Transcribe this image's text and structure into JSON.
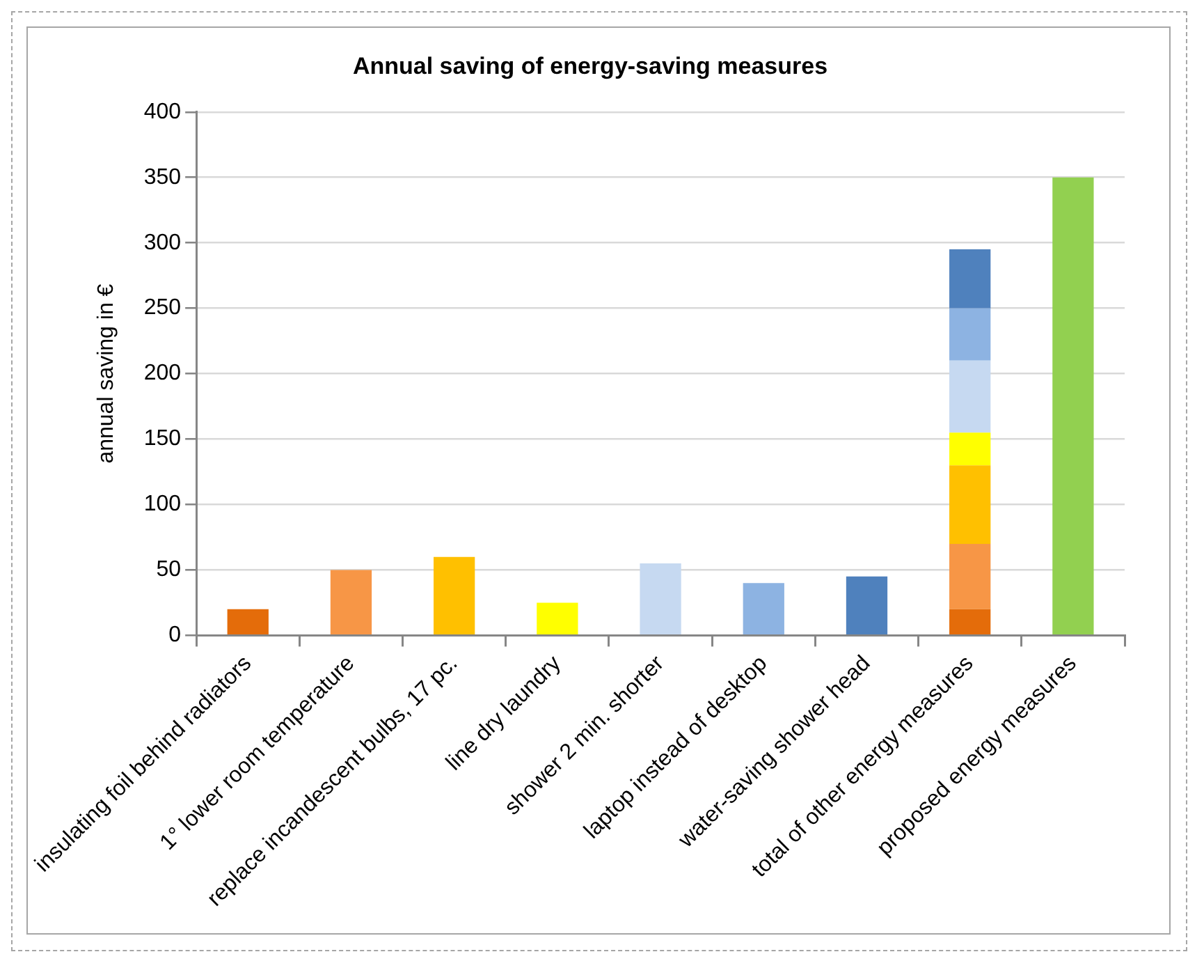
{
  "chart_data": {
    "type": "bar",
    "title": "Annual saving of energy-saving measures",
    "ylabel": "annual saving in €",
    "categories": [
      "insulating foil behind radiators",
      "1° lower room temperature",
      "replace incandescent bulbs, 17 pc.",
      "line dry laundry",
      "shower 2 min. shorter",
      "laptop instead of desktop",
      "water-saving shower head",
      "total of other energy measures",
      "proposed energy measures"
    ],
    "stacked": true,
    "ylim": [
      0,
      400
    ],
    "yticks": [
      0,
      50,
      100,
      150,
      200,
      250,
      300,
      350,
      400
    ],
    "grid": "y",
    "legend": false,
    "series": [
      {
        "color": "#e46c0a",
        "values": [
          20,
          null,
          null,
          null,
          null,
          null,
          null,
          20,
          null
        ]
      },
      {
        "color": "#f79646",
        "values": [
          null,
          50,
          null,
          null,
          null,
          null,
          null,
          50,
          null
        ]
      },
      {
        "color": "#ffc000",
        "values": [
          null,
          null,
          60,
          null,
          null,
          null,
          null,
          60,
          null
        ]
      },
      {
        "color": "#ffff00",
        "values": [
          null,
          null,
          null,
          25,
          null,
          null,
          null,
          25,
          null
        ]
      },
      {
        "color": "#c6d9f1",
        "values": [
          null,
          null,
          null,
          null,
          55,
          null,
          null,
          55,
          null
        ]
      },
      {
        "color": "#8db3e2",
        "values": [
          null,
          null,
          null,
          null,
          null,
          40,
          null,
          40,
          null
        ]
      },
      {
        "color": "#4f81bd",
        "values": [
          null,
          null,
          null,
          null,
          null,
          null,
          45,
          45,
          null
        ]
      },
      {
        "color": "#92d050",
        "values": [
          null,
          null,
          null,
          null,
          null,
          null,
          null,
          null,
          350
        ]
      }
    ]
  }
}
